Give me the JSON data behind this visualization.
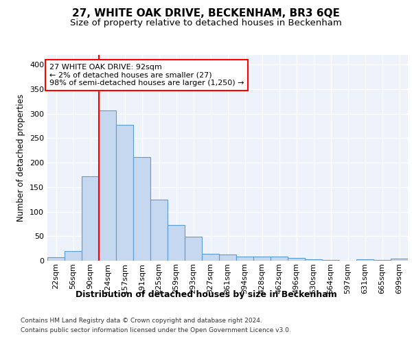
{
  "title1": "27, WHITE OAK DRIVE, BECKENHAM, BR3 6QE",
  "title2": "Size of property relative to detached houses in Beckenham",
  "xlabel": "Distribution of detached houses by size in Beckenham",
  "ylabel": "Number of detached properties",
  "footnote1": "Contains HM Land Registry data © Crown copyright and database right 2024.",
  "footnote2": "Contains public sector information licensed under the Open Government Licence v3.0.",
  "bar_labels": [
    "22sqm",
    "56sqm",
    "90sqm",
    "124sqm",
    "157sqm",
    "191sqm",
    "225sqm",
    "259sqm",
    "293sqm",
    "327sqm",
    "361sqm",
    "394sqm",
    "428sqm",
    "462sqm",
    "496sqm",
    "530sqm",
    "564sqm",
    "597sqm",
    "631sqm",
    "665sqm",
    "699sqm"
  ],
  "bar_values": [
    7,
    20,
    172,
    307,
    277,
    211,
    125,
    73,
    49,
    14,
    13,
    8,
    9,
    9,
    5,
    3,
    1,
    0,
    3,
    1,
    4
  ],
  "bar_color": "#c5d8f0",
  "bar_edge_color": "#5b9bd5",
  "vline_x_idx": 2,
  "vline_color": "red",
  "annotation_text": "27 WHITE OAK DRIVE: 92sqm\n← 2% of detached houses are smaller (27)\n98% of semi-detached houses are larger (1,250) →",
  "annotation_box_color": "white",
  "annotation_box_edge": "red",
  "ylim": [
    0,
    420
  ],
  "yticks": [
    0,
    50,
    100,
    150,
    200,
    250,
    300,
    350,
    400
  ],
  "plot_background": "#edf2fb",
  "grid_color": "white",
  "title1_fontsize": 11,
  "title2_fontsize": 9.5,
  "xlabel_fontsize": 9,
  "ylabel_fontsize": 8.5,
  "tick_fontsize": 8,
  "annot_fontsize": 8
}
